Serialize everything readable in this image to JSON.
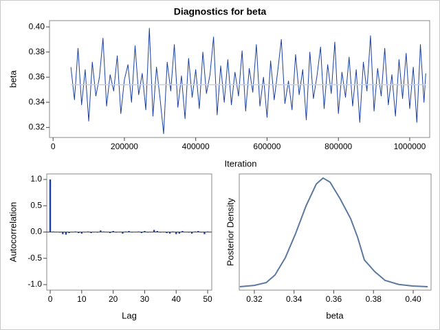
{
  "chart_data": [
    {
      "type": "line",
      "title": "Diagnostics for beta",
      "xlabel": "Iteration",
      "ylabel": "beta",
      "xlim": [
        -10000,
        1056000
      ],
      "ylim": [
        0.312,
        0.405
      ],
      "xticks": [
        0,
        200000,
        400000,
        600000,
        800000,
        1000000
      ],
      "yticks": [
        0.32,
        0.34,
        0.36,
        0.38,
        {
          "value": 0.4,
          "label": "0.40"
        }
      ],
      "series": [
        {
          "color": "#1a3fa0",
          "width": 1,
          "x": [
            50000,
            60000,
            70000,
            80000,
            90000,
            100000,
            110000,
            120000,
            130000,
            140000,
            150000,
            160000,
            170000,
            180000,
            190000,
            200000,
            210000,
            220000,
            230000,
            240000,
            250000,
            260000,
            270000,
            280000,
            290000,
            300000,
            310000,
            320000,
            330000,
            340000,
            350000,
            360000,
            370000,
            380000,
            390000,
            400000,
            410000,
            420000,
            430000,
            440000,
            450000,
            460000,
            470000,
            480000,
            490000,
            500000,
            510000,
            520000,
            530000,
            540000,
            550000,
            560000,
            570000,
            580000,
            590000,
            600000,
            610000,
            620000,
            630000,
            640000,
            650000,
            660000,
            670000,
            680000,
            690000,
            700000,
            710000,
            720000,
            730000,
            740000,
            750000,
            760000,
            770000,
            780000,
            790000,
            800000,
            810000,
            820000,
            830000,
            840000,
            850000,
            860000,
            870000,
            880000,
            890000,
            900000,
            910000,
            920000,
            930000,
            940000,
            950000,
            960000,
            970000,
            980000,
            990000,
            1000000,
            1010000,
            1020000,
            1030000,
            1040000,
            1045000
          ],
          "values": [
            0.368,
            0.342,
            0.383,
            0.338,
            0.366,
            0.325,
            0.372,
            0.345,
            0.36,
            0.391,
            0.337,
            0.362,
            0.349,
            0.377,
            0.331,
            0.358,
            0.37,
            0.34,
            0.385,
            0.346,
            0.363,
            0.334,
            0.399,
            0.329,
            0.368,
            0.343,
            0.315,
            0.372,
            0.349,
            0.386,
            0.336,
            0.361,
            0.327,
            0.375,
            0.344,
            0.366,
            0.335,
            0.38,
            0.347,
            0.362,
            0.392,
            0.33,
            0.369,
            0.34,
            0.374,
            0.338,
            0.364,
            0.345,
            0.381,
            0.333,
            0.367,
            0.348,
            0.386,
            0.337,
            0.36,
            0.328,
            0.373,
            0.342,
            0.365,
            0.39,
            0.339,
            0.357,
            0.334,
            0.378,
            0.346,
            0.366,
            0.326,
            0.38,
            0.343,
            0.361,
            0.384,
            0.335,
            0.37,
            0.347,
            0.388,
            0.331,
            0.364,
            0.344,
            0.376,
            0.337,
            0.366,
            0.324,
            0.372,
            0.349,
            0.393,
            0.333,
            0.367,
            0.345,
            0.383,
            0.338,
            0.362,
            0.329,
            0.374,
            0.343,
            0.379,
            0.335,
            0.368,
            0.324,
            0.386,
            0.34,
            0.363
          ]
        },
        {
          "color": "#c8d0dc",
          "width": 1.5,
          "x": [
            50000,
            1045000
          ],
          "values": [
            0.354,
            0.354
          ]
        }
      ]
    },
    {
      "type": "bar",
      "xlabel": "Lag",
      "ylabel": "Autocorrelation",
      "color": "#1a3fa0",
      "xlim": [
        -1.1,
        51.3
      ],
      "ylim": [
        -1.105,
        1.105
      ],
      "xticks": [
        0,
        10,
        20,
        30,
        40,
        50
      ],
      "yticks": [
        {
          "value": 1,
          "label": "1.0"
        },
        0.5,
        {
          "value": 0,
          "label": "0.0"
        },
        -0.5,
        {
          "value": -1,
          "label": "-1.0"
        }
      ],
      "x": [
        0,
        1,
        2,
        3,
        4,
        5,
        6,
        7,
        8,
        9,
        10,
        11,
        12,
        13,
        14,
        15,
        16,
        17,
        18,
        19,
        20,
        21,
        22,
        23,
        24,
        25,
        26,
        27,
        28,
        29,
        30,
        31,
        32,
        33,
        34,
        35,
        36,
        37,
        38,
        39,
        40,
        41,
        42,
        43,
        44,
        45,
        46,
        47,
        48,
        49,
        50
      ],
      "values": [
        1.0,
        0.01,
        0.0,
        -0.01,
        -0.04,
        -0.05,
        -0.02,
        0.0,
        0.01,
        -0.02,
        -0.03,
        0.0,
        0.01,
        -0.02,
        0.0,
        -0.01,
        0.03,
        0.01,
        0.0,
        -0.02,
        0.02,
        -0.01,
        0.0,
        -0.03,
        0.01,
        0.02,
        -0.01,
        0.0,
        0.01,
        -0.02,
        0.02,
        -0.01,
        0.0,
        0.04,
        0.02,
        -0.01,
        0.0,
        -0.02,
        -0.03,
        0.01,
        -0.04,
        -0.03,
        0.02,
        0.0,
        -0.01,
        -0.03,
        0.01,
        0.02,
        -0.01,
        -0.04,
        0.01
      ]
    },
    {
      "type": "line",
      "xlabel": "beta",
      "ylabel": "Posterior Density",
      "xlim": [
        0.3124,
        0.409
      ],
      "ylim": [
        -0.8,
        36.1
      ],
      "xticks": [
        0.32,
        0.34,
        0.36,
        0.38,
        {
          "value": 0.4,
          "label": "0.40"
        }
      ],
      "series": [
        {
          "color": "#5b789f",
          "width": 2,
          "x": [
            0.3127,
            0.32,
            0.326,
            0.3304,
            0.3356,
            0.3408,
            0.346,
            0.3512,
            0.3546,
            0.3581,
            0.3633,
            0.3685,
            0.372,
            0.3754,
            0.3806,
            0.3858,
            0.3927,
            0.3997,
            0.4073
          ],
          "values": [
            0.3,
            0.7,
            1.6,
            4.0,
            9.5,
            17.2,
            25.9,
            32.9,
            34.8,
            33.5,
            28.1,
            21.9,
            16.0,
            8.8,
            5.1,
            2.3,
            1.0,
            0.5,
            0.3
          ]
        }
      ]
    }
  ]
}
